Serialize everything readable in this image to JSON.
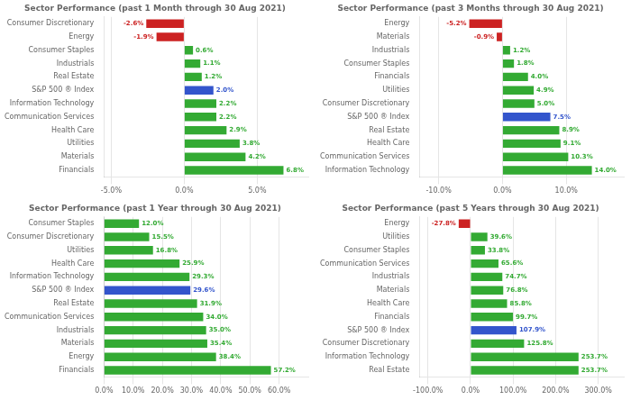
{
  "chart_data": [
    {
      "type": "bar",
      "orientation": "horizontal",
      "title": "Sector Performance (past 1 Month through 30 Aug 2021)",
      "categories": [
        "Consumer Discretionary",
        "Energy",
        "Consumer Staples",
        "Industrials",
        "Real Estate",
        "S&P 500 ® Index",
        "Information Technology",
        "Communication Services",
        "Health Care",
        "Utilities",
        "Materials",
        "Financials"
      ],
      "values": [
        -2.6,
        -1.9,
        0.6,
        1.1,
        1.2,
        2.0,
        2.2,
        2.2,
        2.9,
        3.8,
        4.2,
        6.8
      ],
      "value_labels": [
        "-2.6%",
        "-1.9%",
        "0.6%",
        "1.1%",
        "1.2%",
        "2.0%",
        "2.2%",
        "2.2%",
        "2.9%",
        "3.8%",
        "4.2%",
        "6.8%"
      ],
      "colors": [
        "#cc2222",
        "#cc2222",
        "#33aa33",
        "#33aa33",
        "#33aa33",
        "#3355cc",
        "#33aa33",
        "#33aa33",
        "#33aa33",
        "#33aa33",
        "#33aa33",
        "#33aa33"
      ],
      "xlim": [
        -5.5,
        8.5
      ],
      "xticks": [
        {
          "value": -5.0,
          "label": "-5.0%"
        },
        {
          "value": 0.0,
          "label": "0.0%"
        },
        {
          "value": 5.0,
          "label": "5.0%"
        }
      ],
      "grid": true,
      "data_labels": true
    },
    {
      "type": "bar",
      "orientation": "horizontal",
      "title": "Sector Performance (past 3 Months through 30 Aug 2021)",
      "categories": [
        "Energy",
        "Materials",
        "Industrials",
        "Consumer Staples",
        "Financials",
        "Utilities",
        "Consumer Discretionary",
        "S&P 500 ® Index",
        "Real Estate",
        "Health Care",
        "Communication Services",
        "Information Technology"
      ],
      "values": [
        -5.2,
        -0.9,
        1.2,
        1.8,
        4.0,
        4.9,
        5.0,
        7.5,
        8.9,
        9.1,
        10.3,
        14.0
      ],
      "value_labels": [
        "-5.2%",
        "-0.9%",
        "1.2%",
        "1.8%",
        "4.0%",
        "4.9%",
        "5.0%",
        "7.5%",
        "8.9%",
        "9.1%",
        "10.3%",
        "14.0%"
      ],
      "colors": [
        "#cc2222",
        "#cc2222",
        "#33aa33",
        "#33aa33",
        "#33aa33",
        "#33aa33",
        "#33aa33",
        "#3355cc",
        "#33aa33",
        "#33aa33",
        "#33aa33",
        "#33aa33"
      ],
      "xlim": [
        -13.0,
        19.0
      ],
      "xticks": [
        {
          "value": -10.0,
          "label": "-10.0%"
        },
        {
          "value": 0.0,
          "label": "0.0%"
        },
        {
          "value": 10.0,
          "label": "10.0%"
        }
      ],
      "grid": true,
      "data_labels": true
    },
    {
      "type": "bar",
      "orientation": "horizontal",
      "title": "Sector Performance (past 1 Year through 30 Aug 2021)",
      "categories": [
        "Consumer Staples",
        "Consumer Discretionary",
        "Utilities",
        "Health Care",
        "Information Technology",
        "S&P 500 ® Index",
        "Real Estate",
        "Communication Services",
        "Industrials",
        "Materials",
        "Energy",
        "Financials"
      ],
      "values": [
        12.0,
        15.5,
        16.8,
        25.9,
        29.3,
        29.6,
        31.9,
        34.0,
        35.0,
        35.4,
        38.4,
        57.2
      ],
      "value_labels": [
        "12.0%",
        "15.5%",
        "16.8%",
        "25.9%",
        "29.3%",
        "29.6%",
        "31.9%",
        "34.0%",
        "35.0%",
        "35.4%",
        "38.4%",
        "57.2%"
      ],
      "colors": [
        "#33aa33",
        "#33aa33",
        "#33aa33",
        "#33aa33",
        "#33aa33",
        "#3355cc",
        "#33aa33",
        "#33aa33",
        "#33aa33",
        "#33aa33",
        "#33aa33",
        "#33aa33"
      ],
      "xlim": [
        0.0,
        70.0
      ],
      "xticks": [
        {
          "value": 0.0,
          "label": "0.0%"
        },
        {
          "value": 10.0,
          "label": "10.0%"
        },
        {
          "value": 20.0,
          "label": "20.0%"
        },
        {
          "value": 30.0,
          "label": "30.0%"
        },
        {
          "value": 40.0,
          "label": "40.0%"
        },
        {
          "value": 50.0,
          "label": "50.0%"
        },
        {
          "value": 60.0,
          "label": "60.0%"
        }
      ],
      "grid": true,
      "data_labels": true
    },
    {
      "type": "bar",
      "orientation": "horizontal",
      "title": "Sector Performance (past 5 Years through 30 Aug 2021)",
      "categories": [
        "Energy",
        "Utilities",
        "Consumer Staples",
        "Communication Services",
        "Industrials",
        "Materials",
        "Health Care",
        "Financials",
        "S&P 500 ® Index",
        "Consumer Discretionary",
        "Information Technology",
        "Real Estate"
      ],
      "values": [
        -27.8,
        39.6,
        33.8,
        65.6,
        74.7,
        76.8,
        85.8,
        99.7,
        107.9,
        125.8,
        253.7,
        253.7
      ],
      "value_labels": [
        "-27.8%",
        "39.6%",
        "33.8%",
        "65.6%",
        "74.7%",
        "76.8%",
        "85.8%",
        "99.7%",
        "107.9%",
        "125.8%",
        "253.7%",
        "253.7%"
      ],
      "colors": [
        "#cc2222",
        "#33aa33",
        "#33aa33",
        "#33aa33",
        "#33aa33",
        "#33aa33",
        "#33aa33",
        "#33aa33",
        "#3355cc",
        "#33aa33",
        "#33aa33",
        "#33aa33"
      ],
      "xlim": [
        -120.0,
        360.0
      ],
      "xticks": [
        {
          "value": -100.0,
          "label": "-100.0%"
        },
        {
          "value": 0.0,
          "label": "0.0%"
        },
        {
          "value": 100.0,
          "label": "100.0%"
        },
        {
          "value": 200.0,
          "label": "200.0%"
        },
        {
          "value": 300.0,
          "label": "300.0%"
        }
      ],
      "grid": true,
      "data_labels": true
    }
  ]
}
